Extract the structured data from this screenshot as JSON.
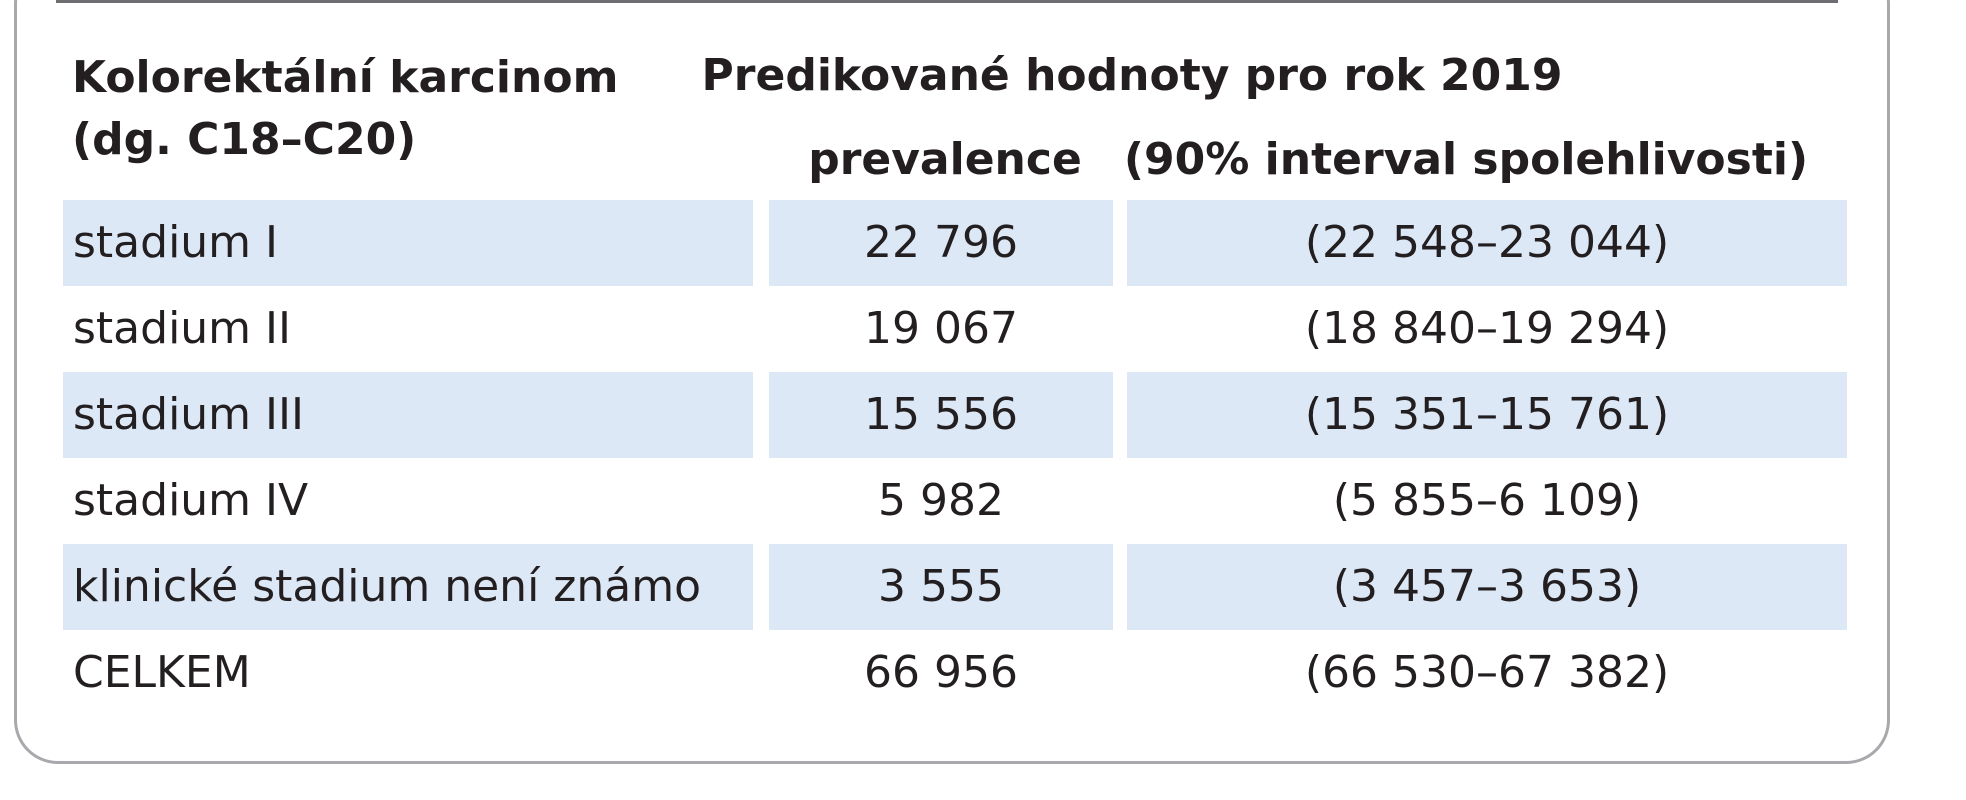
{
  "table": {
    "header": {
      "row_label_line1": "Kolorektální karcinom",
      "row_label_line2": "(dg. C18–C20)",
      "group_title": "Predikované hodnoty pro rok 2019",
      "col_prevalence": "prevalence",
      "col_ci": "(90% interval spolehlivosti)"
    },
    "rows": [
      {
        "label": "stadium I",
        "prevalence": "22 796",
        "ci": "(22 548–23 044)"
      },
      {
        "label": "stadium II",
        "prevalence": "19 067",
        "ci": "(18 840–19 294)"
      },
      {
        "label": "stadium III",
        "prevalence": "15 556",
        "ci": "(15 351–15 761)"
      },
      {
        "label": "stadium IV",
        "prevalence": "5 982",
        "ci": "(5 855–6 109)"
      },
      {
        "label": "klinické stadium není známo",
        "prevalence": "3 555",
        "ci": "(3 457–3 653)"
      },
      {
        "label": "CELKEM",
        "prevalence": "66 956",
        "ci": "(66 530–67 382)"
      }
    ]
  }
}
